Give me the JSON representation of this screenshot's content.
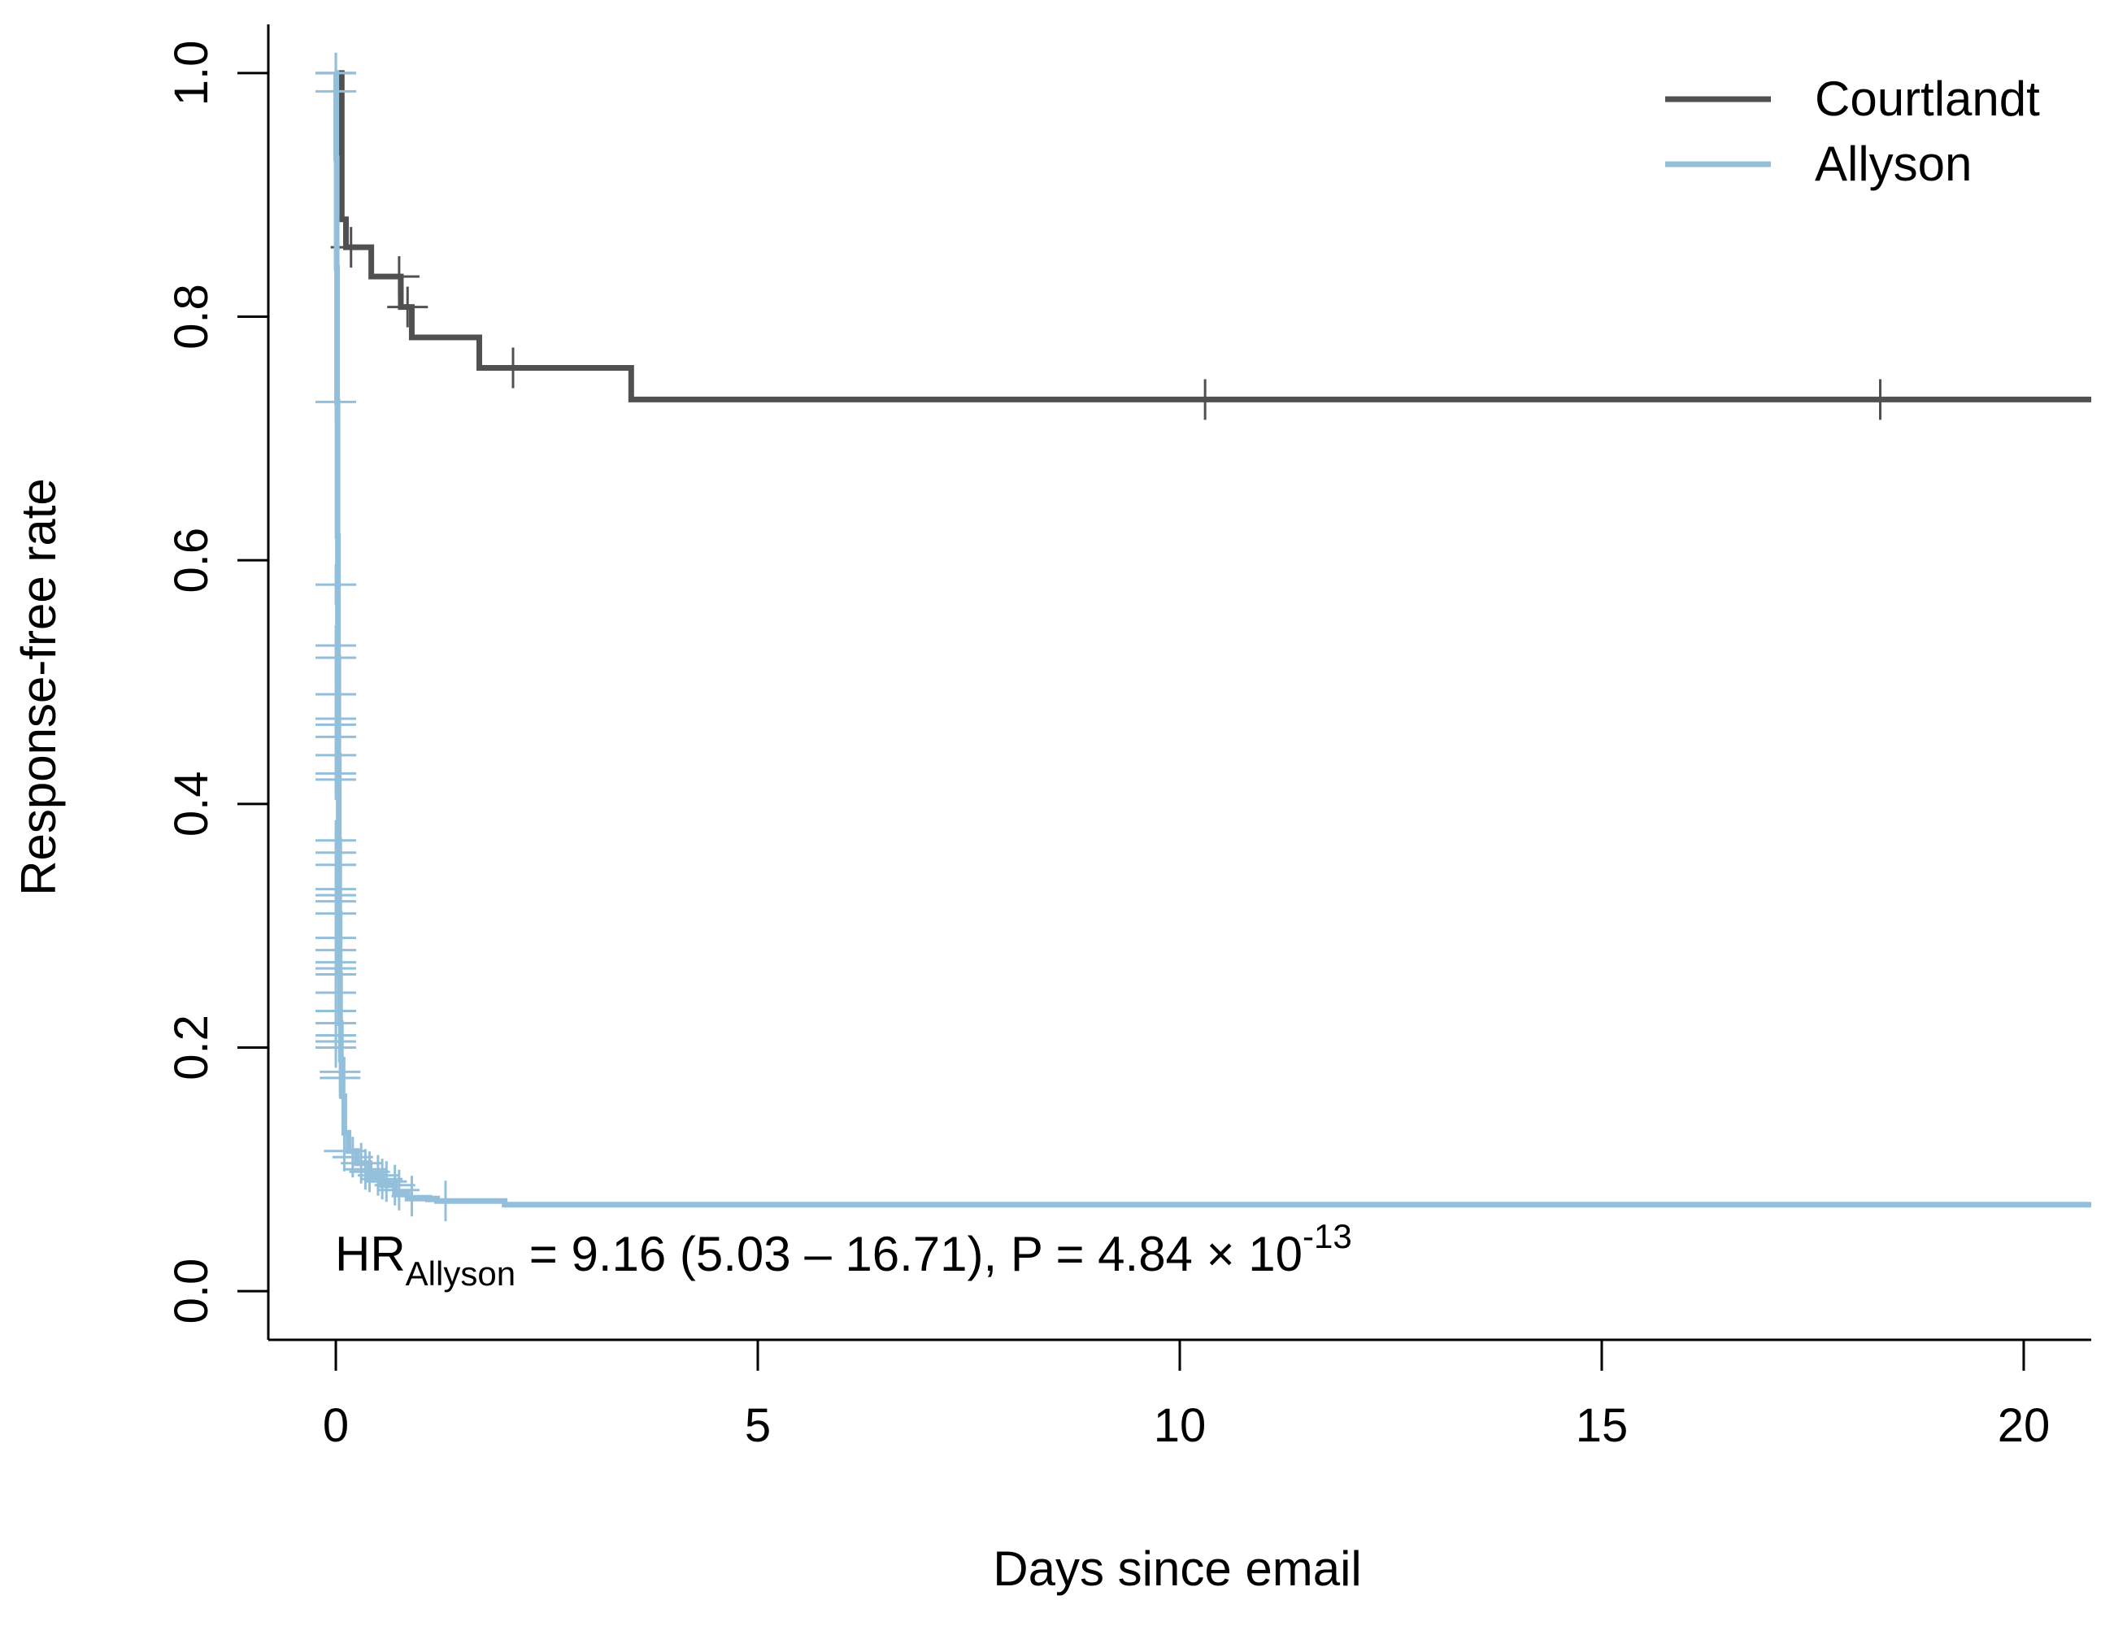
{
  "chart_data": {
    "type": "line",
    "subtype": "kaplan-meier step curves",
    "xlabel": "Days since email",
    "ylabel": "Response-free rate",
    "xlim": [
      -0.8,
      20.8
    ],
    "ylim": [
      -0.04,
      1.04
    ],
    "x_ticks": [
      0,
      5,
      10,
      15,
      20
    ],
    "y_ticks": [
      0.0,
      0.2,
      0.4,
      0.6,
      0.8,
      1.0
    ],
    "x_tick_labels": [
      "0",
      "5",
      "10",
      "15",
      "20"
    ],
    "y_tick_labels": [
      "0.0",
      "0.2",
      "0.4",
      "0.6",
      "0.8",
      "1.0"
    ],
    "grid": false,
    "legend_position": "top-right",
    "legend": [
      "Courtlandt",
      "Allyson"
    ],
    "annotation": {
      "hr_prefix": "HR",
      "hr_subscript": "Allyson",
      "hr_text": " = 9.16 (5.03 – 16.71), P = 4.84 × 10",
      "p_exponent": "-13"
    },
    "series": [
      {
        "name": "Courtlandt",
        "color": "#505050",
        "steps": [
          [
            0.0,
            1.0
          ],
          [
            0.07,
            0.88
          ],
          [
            0.12,
            0.857
          ],
          [
            0.42,
            0.833
          ],
          [
            0.77,
            0.808
          ],
          [
            0.9,
            0.783
          ],
          [
            1.7,
            0.758
          ],
          [
            3.5,
            0.732
          ],
          [
            20.8,
            0.732
          ]
        ],
        "censor_x": [
          0.0,
          0.18,
          0.75,
          0.85,
          2.1,
          10.3,
          18.3
        ]
      },
      {
        "name": "Allyson",
        "color": "#94BFDB",
        "steps": [
          [
            0.0,
            1.0
          ],
          [
            0.005,
            0.93
          ],
          [
            0.01,
            0.84
          ],
          [
            0.015,
            0.73
          ],
          [
            0.02,
            0.62
          ],
          [
            0.025,
            0.52
          ],
          [
            0.03,
            0.44
          ],
          [
            0.035,
            0.37
          ],
          [
            0.04,
            0.31
          ],
          [
            0.045,
            0.26
          ],
          [
            0.05,
            0.22
          ],
          [
            0.06,
            0.19
          ],
          [
            0.08,
            0.16
          ],
          [
            0.1,
            0.13
          ],
          [
            0.15,
            0.115
          ],
          [
            0.25,
            0.105
          ],
          [
            0.4,
            0.095
          ],
          [
            0.55,
            0.087
          ],
          [
            0.7,
            0.08
          ],
          [
            0.85,
            0.076
          ],
          [
            1.2,
            0.074
          ],
          [
            2.0,
            0.071
          ],
          [
            20.8,
            0.071
          ]
        ],
        "censor_points": [
          [
            0.0,
            1.0
          ],
          [
            0.0,
            0.985
          ],
          [
            0.0,
            0.73
          ],
          [
            0.0,
            0.58
          ],
          [
            0.0,
            0.53
          ],
          [
            0.0,
            0.52
          ],
          [
            0.0,
            0.49
          ],
          [
            0.0,
            0.47
          ],
          [
            0.0,
            0.465
          ],
          [
            0.0,
            0.455
          ],
          [
            0.0,
            0.44
          ],
          [
            0.0,
            0.425
          ],
          [
            0.0,
            0.42
          ],
          [
            0.0,
            0.37
          ],
          [
            0.0,
            0.36
          ],
          [
            0.0,
            0.35
          ],
          [
            0.0,
            0.33
          ],
          [
            0.0,
            0.325
          ],
          [
            0.0,
            0.32
          ],
          [
            0.0,
            0.31
          ],
          [
            0.0,
            0.29
          ],
          [
            0.0,
            0.28
          ],
          [
            0.0,
            0.27
          ],
          [
            0.0,
            0.265
          ],
          [
            0.0,
            0.26
          ],
          [
            0.0,
            0.245
          ],
          [
            0.0,
            0.23
          ],
          [
            0.0,
            0.22
          ],
          [
            0.0,
            0.21
          ],
          [
            0.0,
            0.205
          ],
          [
            0.0,
            0.2
          ],
          [
            0.05,
            0.18
          ],
          [
            0.05,
            0.175
          ],
          [
            0.1,
            0.115
          ],
          [
            0.2,
            0.11
          ],
          [
            0.3,
            0.105
          ],
          [
            0.35,
            0.1
          ],
          [
            0.4,
            0.098
          ],
          [
            0.5,
            0.095
          ],
          [
            0.55,
            0.092
          ],
          [
            0.6,
            0.09
          ],
          [
            0.7,
            0.087
          ],
          [
            0.75,
            0.083
          ],
          [
            0.9,
            0.078
          ],
          [
            1.3,
            0.074
          ]
        ]
      }
    ]
  }
}
